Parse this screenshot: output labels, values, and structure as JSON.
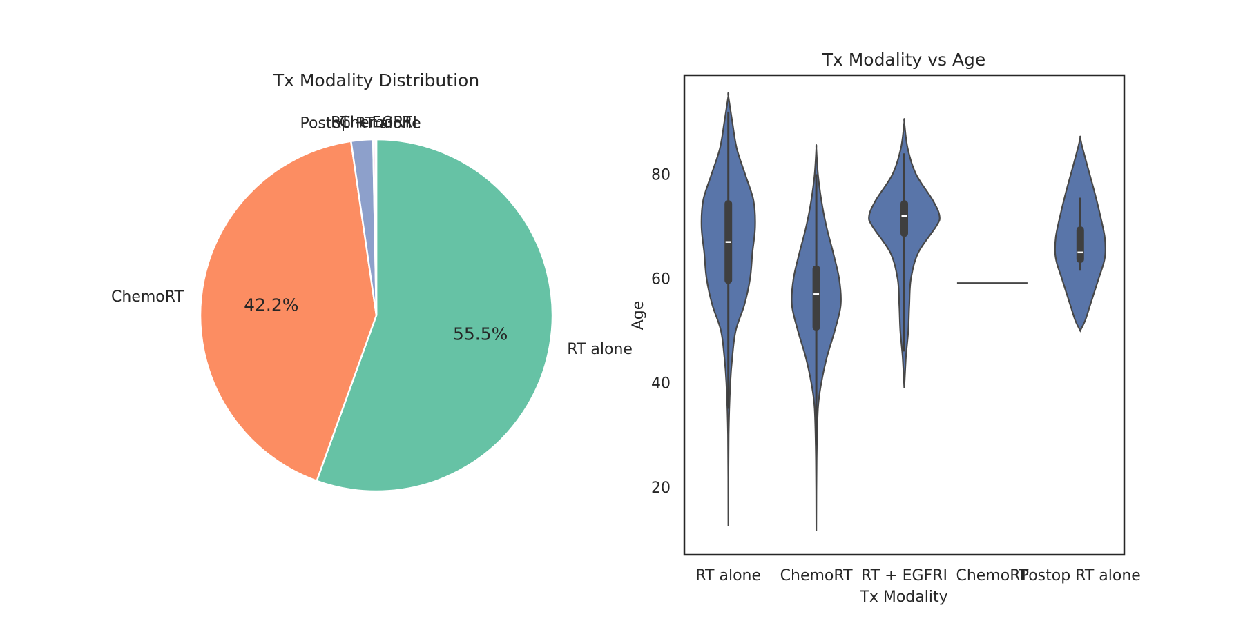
{
  "chart_data": [
    {
      "type": "pie",
      "title": "Tx Modality Distribution",
      "categories": [
        "RT alone",
        "ChemoRT",
        "Postop RT alone",
        "RT + EGFRI",
        "ChemoRT"
      ],
      "values": [
        55.5,
        42.2,
        2.0,
        0.2,
        0.1
      ],
      "value_labels": [
        "55.5%",
        "42.2%",
        "",
        "",
        ""
      ],
      "colors": [
        "#66c2a5",
        "#fc8d62",
        "#8da0cb",
        "#e78ac3",
        "#a6d854"
      ],
      "start_angle_deg": 90,
      "direction": "clockwise"
    },
    {
      "type": "violin",
      "title": "Tx Modality vs Age",
      "xlabel": "Tx Modality",
      "ylabel": "Age",
      "ylim": [
        7,
        99
      ],
      "yticks": [
        20,
        40,
        60,
        80
      ],
      "color": "#5975a9",
      "box_color": "#3f3f3f",
      "categories": [
        "RT alone",
        "ChemoRT",
        "RT + EGFRI",
        "ChemoRT",
        "Postop RT alone"
      ],
      "violins": [
        {
          "profile": [
            [
              12.5,
              0.0
            ],
            [
              30,
              0.1
            ],
            [
              40,
              0.6
            ],
            [
              45,
              1.2
            ],
            [
              50,
              2.2
            ],
            [
              55,
              4.8
            ],
            [
              60,
              6.5
            ],
            [
              65,
              7.2
            ],
            [
              70,
              8.0
            ],
            [
              75,
              7.5
            ],
            [
              80,
              5.0
            ],
            [
              85,
              2.5
            ],
            [
              90,
              1.2
            ],
            [
              95,
              0.0
            ]
          ],
          "whisker": [
            35,
            92
          ],
          "q1": 59,
          "q3": 75,
          "median": 67
        },
        {
          "profile": [
            [
              11.5,
              0.0
            ],
            [
              25,
              0.1
            ],
            [
              35,
              0.5
            ],
            [
              40,
              1.5
            ],
            [
              45,
              3.2
            ],
            [
              50,
              5.5
            ],
            [
              55,
              7.3
            ],
            [
              60,
              6.8
            ],
            [
              65,
              5.0
            ],
            [
              70,
              3.0
            ],
            [
              75,
              1.5
            ],
            [
              80,
              0.5
            ],
            [
              85,
              0.0
            ]
          ],
          "whisker": [
            28,
            80
          ],
          "q1": 50,
          "q3": 62.5,
          "median": 57
        },
        {
          "profile": [
            [
              39,
              0.0
            ],
            [
              45,
              0.5
            ],
            [
              50,
              1.2
            ],
            [
              55,
              1.5
            ],
            [
              60,
              2.0
            ],
            [
              65,
              4.2
            ],
            [
              70,
              9.5
            ],
            [
              72,
              10.5
            ],
            [
              75,
              8.5
            ],
            [
              80,
              3.5
            ],
            [
              85,
              1.0
            ],
            [
              90,
              0.0
            ]
          ],
          "whisker": [
            46,
            84
          ],
          "q1": 68,
          "q3": 75,
          "median": 72
        },
        {
          "single_value": 59.1
        },
        {
          "profile": [
            [
              50,
              0.0
            ],
            [
              52,
              1.5
            ],
            [
              55,
              3.0
            ],
            [
              60,
              5.5
            ],
            [
              63,
              7.0
            ],
            [
              65,
              7.5
            ],
            [
              68,
              7.3
            ],
            [
              72,
              6.0
            ],
            [
              76,
              4.5
            ],
            [
              80,
              2.8
            ],
            [
              85,
              0.7
            ],
            [
              87,
              0.0
            ]
          ],
          "whisker": [
            61.5,
            75.5
          ],
          "q1": 63,
          "q3": 70,
          "median": 65
        }
      ]
    }
  ]
}
